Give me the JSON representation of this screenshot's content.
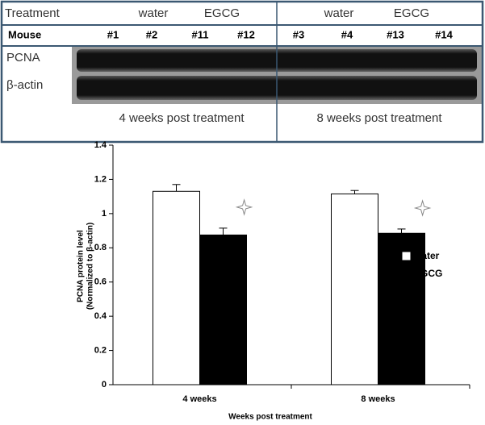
{
  "blot": {
    "treatment_label": "Treatment",
    "groups": [
      "water",
      "EGCG",
      "water",
      "EGCG"
    ],
    "mouse_label": "Mouse",
    "mice": [
      "#1",
      "#2",
      "#11",
      "#12",
      "#3",
      "#4",
      "#13",
      "#14"
    ],
    "rows": [
      "PCNA",
      "β-actin"
    ],
    "periods": [
      "4 weeks post treatment",
      "8 weeks post treatment"
    ]
  },
  "chart_data": {
    "type": "bar",
    "xlabel": "Weeks post treatment",
    "ylabel": [
      "PCNA protein level",
      "(Normalized to β-actin)"
    ],
    "categories": [
      "4 weeks",
      "8 weeks"
    ],
    "series": [
      {
        "name": "water",
        "color": "#ffffff",
        "values": [
          1.13,
          1.115
        ],
        "errors": [
          0.04,
          0.02
        ]
      },
      {
        "name": "EGCG",
        "color": "#000000",
        "values": [
          0.875,
          0.885
        ],
        "errors": [
          0.04,
          0.025
        ]
      }
    ],
    "ylim": [
      0,
      1.4
    ],
    "yticks": [
      0,
      0.2,
      0.4,
      0.6,
      0.8,
      1,
      1.2,
      1.4
    ],
    "legend": "right"
  }
}
